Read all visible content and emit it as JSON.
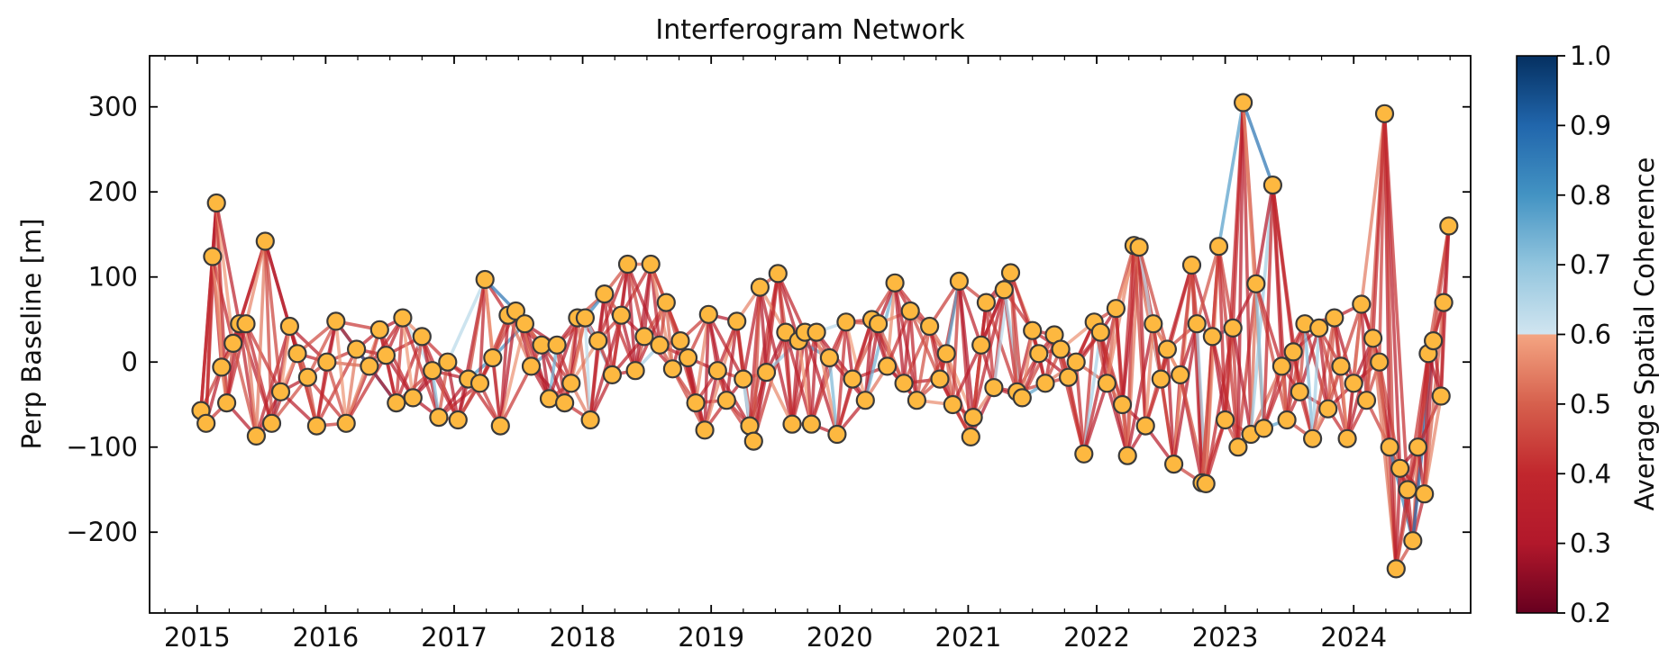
{
  "chart_data": {
    "type": "scatter",
    "title": "Interferogram Network",
    "xlabel": "",
    "ylabel": "Perp Baseline [m]",
    "xlim": [
      2014.63,
      2024.91
    ],
    "ylim": [
      -295,
      360
    ],
    "x_ticks": [
      2015,
      2016,
      2017,
      2018,
      2019,
      2020,
      2021,
      2022,
      2023,
      2024
    ],
    "x_tick_labels": [
      "2015",
      "2016",
      "2017",
      "2018",
      "2019",
      "2020",
      "2021",
      "2022",
      "2023",
      "2024"
    ],
    "y_ticks": [
      -200,
      -100,
      0,
      100,
      200,
      300
    ],
    "y_tick_labels": [
      "−200",
      "−100",
      "0",
      "100",
      "200",
      "300"
    ],
    "colorbar": {
      "label": "Average Spatial Coherence",
      "range": [
        0.2,
        1.0
      ],
      "ticks": [
        0.2,
        0.3,
        0.4,
        0.5,
        0.6,
        0.7,
        0.8,
        0.9,
        1.0
      ],
      "tick_labels": [
        "0.2",
        "0.3",
        "0.4",
        "0.5",
        "0.6",
        "0.7",
        "0.8",
        "0.9",
        "1.0"
      ],
      "colormap": "RdBu",
      "stops": [
        "#67001f",
        "#b2182b",
        "#d6604d",
        "#f4a582",
        "#d1e5f0",
        "#92c5de",
        "#4393c3",
        "#2166ac",
        "#053061"
      ]
    },
    "marker": {
      "fill": "#fdb840",
      "edge": "#3a3a3a"
    },
    "connections_per_acquisition": 4,
    "acquisitions": [
      {
        "x": 2015.03,
        "y": -57
      },
      {
        "x": 2015.07,
        "y": -72
      },
      {
        "x": 2015.12,
        "y": 124
      },
      {
        "x": 2015.15,
        "y": 187
      },
      {
        "x": 2015.19,
        "y": -6
      },
      {
        "x": 2015.23,
        "y": -48
      },
      {
        "x": 2015.28,
        "y": 22
      },
      {
        "x": 2015.33,
        "y": 45
      },
      {
        "x": 2015.38,
        "y": 45
      },
      {
        "x": 2015.46,
        "y": -87
      },
      {
        "x": 2015.53,
        "y": 142
      },
      {
        "x": 2015.58,
        "y": -72
      },
      {
        "x": 2015.65,
        "y": -35
      },
      {
        "x": 2015.72,
        "y": 42
      },
      {
        "x": 2015.78,
        "y": 10
      },
      {
        "x": 2015.86,
        "y": -18
      },
      {
        "x": 2015.93,
        "y": -75
      },
      {
        "x": 2016.01,
        "y": 0
      },
      {
        "x": 2016.08,
        "y": 48
      },
      {
        "x": 2016.16,
        "y": -72
      },
      {
        "x": 2016.24,
        "y": 15
      },
      {
        "x": 2016.34,
        "y": -5
      },
      {
        "x": 2016.42,
        "y": 38
      },
      {
        "x": 2016.47,
        "y": 8
      },
      {
        "x": 2016.55,
        "y": -48
      },
      {
        "x": 2016.6,
        "y": 52
      },
      {
        "x": 2016.68,
        "y": -42
      },
      {
        "x": 2016.75,
        "y": 30
      },
      {
        "x": 2016.83,
        "y": -10
      },
      {
        "x": 2016.88,
        "y": -65
      },
      {
        "x": 2016.95,
        "y": 0
      },
      {
        "x": 2017.03,
        "y": -68
      },
      {
        "x": 2017.11,
        "y": -20
      },
      {
        "x": 2017.2,
        "y": -25
      },
      {
        "x": 2017.24,
        "y": 97
      },
      {
        "x": 2017.3,
        "y": 5
      },
      {
        "x": 2017.36,
        "y": -75
      },
      {
        "x": 2017.42,
        "y": 55
      },
      {
        "x": 2017.48,
        "y": 60
      },
      {
        "x": 2017.55,
        "y": 45
      },
      {
        "x": 2017.6,
        "y": -5
      },
      {
        "x": 2017.68,
        "y": 20
      },
      {
        "x": 2017.74,
        "y": -43
      },
      {
        "x": 2017.8,
        "y": 20
      },
      {
        "x": 2017.86,
        "y": -48
      },
      {
        "x": 2017.91,
        "y": -25
      },
      {
        "x": 2017.96,
        "y": 52
      },
      {
        "x": 2018.02,
        "y": 52
      },
      {
        "x": 2018.06,
        "y": -68
      },
      {
        "x": 2018.12,
        "y": 25
      },
      {
        "x": 2018.17,
        "y": 80
      },
      {
        "x": 2018.23,
        "y": -15
      },
      {
        "x": 2018.3,
        "y": 55
      },
      {
        "x": 2018.35,
        "y": 115
      },
      {
        "x": 2018.41,
        "y": -10
      },
      {
        "x": 2018.48,
        "y": 30
      },
      {
        "x": 2018.53,
        "y": 115
      },
      {
        "x": 2018.6,
        "y": 20
      },
      {
        "x": 2018.65,
        "y": 70
      },
      {
        "x": 2018.7,
        "y": -8
      },
      {
        "x": 2018.76,
        "y": 25
      },
      {
        "x": 2018.82,
        "y": 5
      },
      {
        "x": 2018.88,
        "y": -48
      },
      {
        "x": 2018.95,
        "y": -80
      },
      {
        "x": 2018.98,
        "y": 56
      },
      {
        "x": 2019.05,
        "y": -10
      },
      {
        "x": 2019.12,
        "y": -45
      },
      {
        "x": 2019.2,
        "y": 48
      },
      {
        "x": 2019.25,
        "y": -20
      },
      {
        "x": 2019.3,
        "y": -75
      },
      {
        "x": 2019.33,
        "y": -93
      },
      {
        "x": 2019.38,
        "y": 88
      },
      {
        "x": 2019.43,
        "y": -12
      },
      {
        "x": 2019.52,
        "y": 104
      },
      {
        "x": 2019.58,
        "y": 35
      },
      {
        "x": 2019.63,
        "y": -73
      },
      {
        "x": 2019.68,
        "y": 25
      },
      {
        "x": 2019.73,
        "y": 35
      },
      {
        "x": 2019.78,
        "y": -73
      },
      {
        "x": 2019.82,
        "y": 35
      },
      {
        "x": 2019.92,
        "y": 5
      },
      {
        "x": 2019.98,
        "y": -85
      },
      {
        "x": 2020.05,
        "y": 47
      },
      {
        "x": 2020.1,
        "y": -20
      },
      {
        "x": 2020.2,
        "y": -45
      },
      {
        "x": 2020.25,
        "y": 50
      },
      {
        "x": 2020.3,
        "y": 45
      },
      {
        "x": 2020.37,
        "y": -5
      },
      {
        "x": 2020.43,
        "y": 93
      },
      {
        "x": 2020.5,
        "y": -25
      },
      {
        "x": 2020.55,
        "y": 60
      },
      {
        "x": 2020.6,
        "y": -45
      },
      {
        "x": 2020.7,
        "y": 42
      },
      {
        "x": 2020.78,
        "y": -20
      },
      {
        "x": 2020.83,
        "y": 10
      },
      {
        "x": 2020.88,
        "y": -50
      },
      {
        "x": 2020.93,
        "y": 95
      },
      {
        "x": 2021.02,
        "y": -88
      },
      {
        "x": 2021.04,
        "y": -65
      },
      {
        "x": 2021.1,
        "y": 20
      },
      {
        "x": 2021.14,
        "y": 70
      },
      {
        "x": 2021.2,
        "y": -30
      },
      {
        "x": 2021.28,
        "y": 85
      },
      {
        "x": 2021.33,
        "y": 105
      },
      {
        "x": 2021.38,
        "y": -35
      },
      {
        "x": 2021.42,
        "y": -42
      },
      {
        "x": 2021.5,
        "y": 37
      },
      {
        "x": 2021.55,
        "y": 10
      },
      {
        "x": 2021.6,
        "y": -25
      },
      {
        "x": 2021.67,
        "y": 32
      },
      {
        "x": 2021.72,
        "y": 15
      },
      {
        "x": 2021.78,
        "y": -18
      },
      {
        "x": 2021.84,
        "y": 0
      },
      {
        "x": 2021.9,
        "y": -108
      },
      {
        "x": 2021.98,
        "y": 47
      },
      {
        "x": 2022.03,
        "y": 35
      },
      {
        "x": 2022.08,
        "y": -25
      },
      {
        "x": 2022.15,
        "y": 63
      },
      {
        "x": 2022.2,
        "y": -50
      },
      {
        "x": 2022.24,
        "y": -110
      },
      {
        "x": 2022.29,
        "y": 137
      },
      {
        "x": 2022.33,
        "y": 135
      },
      {
        "x": 2022.38,
        "y": -75
      },
      {
        "x": 2022.44,
        "y": 45
      },
      {
        "x": 2022.5,
        "y": -20
      },
      {
        "x": 2022.55,
        "y": 15
      },
      {
        "x": 2022.6,
        "y": -120
      },
      {
        "x": 2022.65,
        "y": -15
      },
      {
        "x": 2022.74,
        "y": 114
      },
      {
        "x": 2022.78,
        "y": 45
      },
      {
        "x": 2022.82,
        "y": -142
      },
      {
        "x": 2022.85,
        "y": -143
      },
      {
        "x": 2022.9,
        "y": 30
      },
      {
        "x": 2022.95,
        "y": 136
      },
      {
        "x": 2023.0,
        "y": -68
      },
      {
        "x": 2023.06,
        "y": 40
      },
      {
        "x": 2023.1,
        "y": -100
      },
      {
        "x": 2023.14,
        "y": 305
      },
      {
        "x": 2023.2,
        "y": -85
      },
      {
        "x": 2023.24,
        "y": 92
      },
      {
        "x": 2023.3,
        "y": -78
      },
      {
        "x": 2023.37,
        "y": 208
      },
      {
        "x": 2023.44,
        "y": -5
      },
      {
        "x": 2023.48,
        "y": -68
      },
      {
        "x": 2023.53,
        "y": 12
      },
      {
        "x": 2023.58,
        "y": -35
      },
      {
        "x": 2023.62,
        "y": 45
      },
      {
        "x": 2023.68,
        "y": -90
      },
      {
        "x": 2023.73,
        "y": 40
      },
      {
        "x": 2023.8,
        "y": -55
      },
      {
        "x": 2023.85,
        "y": 52
      },
      {
        "x": 2023.9,
        "y": -5
      },
      {
        "x": 2023.95,
        "y": -90
      },
      {
        "x": 2024.0,
        "y": -25
      },
      {
        "x": 2024.06,
        "y": 68
      },
      {
        "x": 2024.1,
        "y": -45
      },
      {
        "x": 2024.15,
        "y": 28
      },
      {
        "x": 2024.2,
        "y": 0
      },
      {
        "x": 2024.24,
        "y": 292
      },
      {
        "x": 2024.28,
        "y": -100
      },
      {
        "x": 2024.33,
        "y": -243
      },
      {
        "x": 2024.36,
        "y": -125
      },
      {
        "x": 2024.42,
        "y": -150
      },
      {
        "x": 2024.46,
        "y": -210
      },
      {
        "x": 2024.5,
        "y": -100
      },
      {
        "x": 2024.55,
        "y": -155
      },
      {
        "x": 2024.58,
        "y": 10
      },
      {
        "x": 2024.62,
        "y": 25
      },
      {
        "x": 2024.68,
        "y": -40
      },
      {
        "x": 2024.7,
        "y": 70
      },
      {
        "x": 2024.74,
        "y": 160
      }
    ]
  }
}
